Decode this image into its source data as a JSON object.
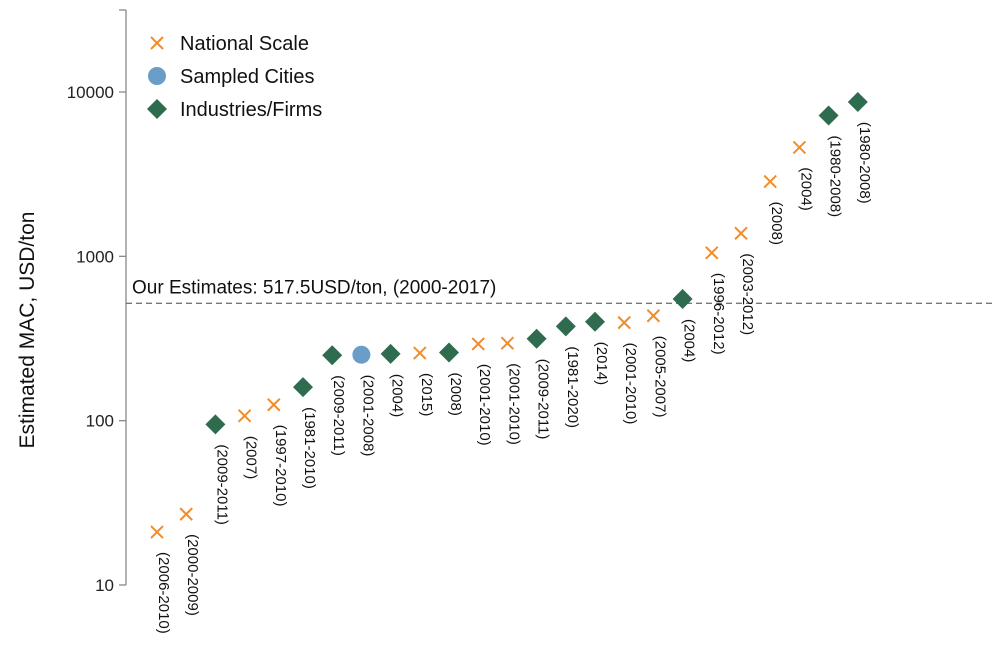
{
  "chart_data": {
    "type": "scatter",
    "ylabel": "Estimated MAC, USD/ton",
    "yscale": "log",
    "ylim": [
      10,
      30000
    ],
    "yticks": [
      10,
      100,
      1000,
      10000
    ],
    "ytick_labels": [
      "10",
      "100",
      "1000",
      "10000"
    ],
    "reference_line": {
      "value": 517.5,
      "label": "Our Estimates: 517.5USD/ton, (2000-2017)",
      "style": "dashed"
    },
    "legend": {
      "placement": "top-left",
      "entries": [
        {
          "key": "national",
          "label": "National Scale"
        },
        {
          "key": "cities",
          "label": "Sampled Cities"
        },
        {
          "key": "firms",
          "label": "Industries/Firms"
        }
      ]
    },
    "series": [
      {
        "key": "national",
        "name": "National Scale",
        "marker": "x",
        "color": "#F28C28"
      },
      {
        "key": "cities",
        "name": "Sampled Cities",
        "marker": "circle",
        "color": "#6A9EC8"
      },
      {
        "key": "firms",
        "name": "Industries/Firms",
        "marker": "diamond",
        "color": "#2E6B4F"
      }
    ],
    "points": [
      {
        "label": "(2006-2010)",
        "value": 21,
        "series": "national"
      },
      {
        "label": "(2000-2009)",
        "value": 27,
        "series": "national"
      },
      {
        "label": "(2009-2011)",
        "value": 95,
        "series": "firms"
      },
      {
        "label": "(2007)",
        "value": 107,
        "series": "national"
      },
      {
        "label": "(1997-2010)",
        "value": 125,
        "series": "national"
      },
      {
        "label": "(1981-2010)",
        "value": 160,
        "series": "firms"
      },
      {
        "label": "(2009-2011)",
        "value": 250,
        "series": "firms"
      },
      {
        "label": "(2001-2008)",
        "value": 252,
        "series": "cities"
      },
      {
        "label": "(2004)",
        "value": 255,
        "series": "firms"
      },
      {
        "label": "(2015)",
        "value": 258,
        "series": "national"
      },
      {
        "label": "(2008)",
        "value": 260,
        "series": "firms"
      },
      {
        "label": "(2001-2010)",
        "value": 293,
        "series": "national"
      },
      {
        "label": "(2001-2010)",
        "value": 296,
        "series": "national"
      },
      {
        "label": "(2009-2011)",
        "value": 315,
        "series": "firms"
      },
      {
        "label": "(1981-2020)",
        "value": 375,
        "series": "firms"
      },
      {
        "label": "(2014)",
        "value": 400,
        "series": "firms"
      },
      {
        "label": "(2001-2010)",
        "value": 395,
        "series": "national"
      },
      {
        "label": "(2005-2007)",
        "value": 435,
        "series": "national"
      },
      {
        "label": "(2004)",
        "value": 550,
        "series": "firms"
      },
      {
        "label": "(1996-2012)",
        "value": 1050,
        "series": "national"
      },
      {
        "label": "(2003-2012)",
        "value": 1380,
        "series": "national"
      },
      {
        "label": "(2008)",
        "value": 2850,
        "series": "national"
      },
      {
        "label": "(2004)",
        "value": 4600,
        "series": "national"
      },
      {
        "label": "(1980-2008)",
        "value": 7200,
        "series": "firms"
      },
      {
        "label": "(1980-2008)",
        "value": 8700,
        "series": "firms"
      }
    ]
  }
}
